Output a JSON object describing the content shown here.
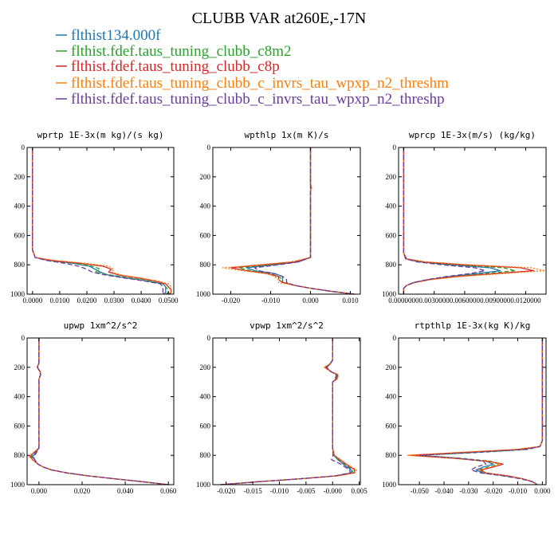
{
  "figure": {
    "title": "CLUBB VAR at260E,-17N",
    "legend": [
      {
        "label": "flthist134.000f",
        "color": "#1f77b4"
      },
      {
        "label": "flthist.fdef.taus_tuning_clubb_c8m2",
        "color": "#2ca02c"
      },
      {
        "label": "flthist.fdef.taus_tuning_clubb_c8p",
        "color": "#d62728"
      },
      {
        "label": "flthist.fdef.taus_tuning_clubb_c_invrs_tau_wpxp_n2_threshm",
        "color": "#ff7f0e"
      },
      {
        "label": "flthist.fdef.taus_tuning_clubb_c_invrs_tau_wpxp_n2_threshp",
        "color": "#6a3d9a"
      }
    ]
  },
  "chart_data": [
    {
      "type": "line",
      "title": "wprtp  1E-3x(m kg)/(s kg)",
      "xlim": [
        -0.002,
        0.052
      ],
      "ylim": [
        0,
        1000
      ],
      "y_inverted": true,
      "xticks": [
        0,
        0.01,
        0.02,
        0.03,
        0.04,
        0.05
      ],
      "xtick_labels": [
        "0.0000",
        "0.0100",
        "0.0200",
        "0.0300",
        "0.0400",
        "0.0500"
      ],
      "yticks": [
        0,
        200,
        400,
        600,
        800,
        1000
      ],
      "ytick_labels": [
        "0",
        "200",
        "400",
        "600",
        "800",
        "1000"
      ],
      "y": [
        0,
        200,
        400,
        600,
        700,
        750,
        770,
        790,
        810,
        830,
        850,
        870,
        890,
        910,
        930,
        950,
        970,
        990,
        1000
      ],
      "series": [
        {
          "values": [
            0,
            0,
            0,
            0,
            0,
            0.001,
            0.006,
            0.015,
            0.021,
            0.023,
            0.025,
            0.028,
            0.035,
            0.042,
            0.048,
            0.049,
            0.049,
            0.049,
            0.048
          ]
        },
        {
          "values": [
            0,
            0,
            0,
            0,
            0,
            0.001,
            0.006,
            0.016,
            0.022,
            0.025,
            0.023,
            0.029,
            0.036,
            0.043,
            0.048,
            0.049,
            0.05,
            0.05,
            0.049
          ]
        },
        {
          "values": [
            0,
            0,
            0,
            0,
            0,
            0.001,
            0.007,
            0.018,
            0.026,
            0.029,
            0.028,
            0.032,
            0.039,
            0.045,
            0.049,
            0.05,
            0.051,
            0.051,
            0.05
          ]
        },
        {
          "values": [
            0,
            0,
            0,
            0,
            0,
            0.001,
            0.008,
            0.02,
            0.028,
            0.03,
            0.029,
            0.033,
            0.04,
            0.046,
            0.05,
            0.051,
            0.051,
            0.051,
            0.05
          ]
        },
        {
          "values": [
            0,
            0,
            0,
            0,
            0,
            0.001,
            0.005,
            0.012,
            0.017,
            0.02,
            0.022,
            0.027,
            0.034,
            0.041,
            0.047,
            0.048,
            0.048,
            0.048,
            0.047
          ]
        }
      ]
    },
    {
      "type": "line",
      "title": "wpthlp  1x(m K)/s",
      "xlim": [
        -0.0245,
        0.0125
      ],
      "ylim": [
        0,
        1000
      ],
      "y_inverted": true,
      "xticks": [
        -0.02,
        -0.01,
        0,
        0.01
      ],
      "xtick_labels": [
        "-0.020",
        "-0.010",
        "0.000",
        "0.010"
      ],
      "yticks": [
        0,
        200,
        400,
        600,
        800,
        1000
      ],
      "ytick_labels": [
        "0",
        "200",
        "400",
        "600",
        "800",
        "1000"
      ],
      "y": [
        0,
        100,
        200,
        250,
        270,
        300,
        400,
        500,
        600,
        700,
        750,
        780,
        800,
        820,
        840,
        860,
        880,
        900,
        920,
        940,
        960,
        980,
        1000
      ],
      "series": [
        {
          "values": [
            0,
            0,
            0,
            0,
            0,
            0,
            0,
            0,
            0,
            0,
            0,
            -0.003,
            -0.009,
            -0.016,
            -0.014,
            -0.009,
            -0.007,
            -0.007,
            -0.007,
            -0.004,
            0.0,
            0.005,
            0.011
          ]
        },
        {
          "values": [
            0,
            0,
            0,
            0,
            0.0002,
            0,
            0,
            0,
            0,
            0,
            0,
            -0.004,
            -0.01,
            -0.018,
            -0.015,
            -0.01,
            -0.008,
            -0.007,
            -0.007,
            -0.004,
            0.0,
            0.005,
            0.011
          ]
        },
        {
          "values": [
            0,
            0,
            0,
            0,
            0.0002,
            0,
            0,
            0,
            0,
            0,
            0,
            -0.004,
            -0.012,
            -0.02,
            -0.016,
            -0.011,
            -0.008,
            -0.008,
            -0.007,
            -0.004,
            0.0,
            0.005,
            0.011
          ]
        },
        {
          "values": [
            0,
            0,
            0,
            0,
            0.0002,
            0,
            0,
            0,
            0,
            0,
            0,
            -0.005,
            -0.013,
            -0.022,
            -0.017,
            -0.011,
            -0.009,
            -0.008,
            -0.008,
            -0.004,
            0.0,
            0.005,
            0.011
          ]
        },
        {
          "values": [
            0,
            0,
            0,
            0,
            0,
            0,
            0,
            0,
            0,
            0,
            0,
            -0.003,
            -0.008,
            -0.014,
            -0.013,
            -0.009,
            -0.007,
            -0.006,
            -0.006,
            -0.004,
            0.0,
            0.005,
            0.011
          ]
        }
      ]
    },
    {
      "type": "line",
      "title": "wprcp  1E-3x(m/s) (kg/kg)",
      "xlim": [
        -0.0005,
        0.014
      ],
      "ylim": [
        0,
        1000
      ],
      "y_inverted": true,
      "xticks": [
        0,
        0.003,
        0.006,
        0.009,
        0.012
      ],
      "xtick_labels": [
        "0.0000000",
        "0.0030000",
        "0.0060000",
        "0.0090000",
        "0.0120000"
      ],
      "yticks": [
        0,
        200,
        400,
        600,
        800,
        1000
      ],
      "ytick_labels": [
        "0",
        "200",
        "400",
        "600",
        "800",
        "1000"
      ],
      "y": [
        0,
        200,
        400,
        600,
        720,
        760,
        780,
        800,
        820,
        840,
        860,
        880,
        900,
        920,
        940,
        960,
        980,
        1000
      ],
      "series": [
        {
          "values": [
            0,
            0,
            0,
            0,
            0,
            0.0002,
            0.0015,
            0.0045,
            0.0085,
            0.0095,
            0.0072,
            0.0045,
            0.0025,
            0.001,
            0.0003,
            0,
            0,
            0
          ]
        },
        {
          "values": [
            0,
            0,
            0,
            0,
            0,
            0.0002,
            0.0017,
            0.0052,
            0.0098,
            0.011,
            0.008,
            0.0048,
            0.0025,
            0.001,
            0.0003,
            0,
            0,
            0
          ]
        },
        {
          "values": [
            0,
            0,
            0,
            0,
            0,
            0.0003,
            0.002,
            0.006,
            0.0115,
            0.0128,
            0.009,
            0.0052,
            0.0026,
            0.0011,
            0.0003,
            0,
            0,
            0
          ]
        },
        {
          "values": [
            0,
            0,
            0,
            0,
            0,
            0.0003,
            0.0022,
            0.0065,
            0.0125,
            0.0139,
            0.0098,
            0.0056,
            0.0028,
            0.0012,
            0.0003,
            0,
            0,
            0
          ]
        },
        {
          "values": [
            0,
            0,
            0,
            0,
            0,
            0.0002,
            0.0013,
            0.0038,
            0.007,
            0.008,
            0.0065,
            0.0042,
            0.0024,
            0.001,
            0.0003,
            0,
            0,
            0
          ]
        }
      ]
    },
    {
      "type": "line",
      "title": "upwp  1xm^2/s^2",
      "xlim": [
        -0.0055,
        0.0625
      ],
      "ylim": [
        0,
        1000
      ],
      "y_inverted": true,
      "xticks": [
        0,
        0.02,
        0.04,
        0.06
      ],
      "xtick_labels": [
        "0.000",
        "0.020",
        "0.040",
        "0.060"
      ],
      "yticks": [
        0,
        200,
        400,
        600,
        800,
        1000
      ],
      "ytick_labels": [
        "0",
        "200",
        "400",
        "600",
        "800",
        "1000"
      ],
      "y": [
        0,
        100,
        170,
        200,
        230,
        250,
        280,
        400,
        600,
        750,
        790,
        810,
        830,
        860,
        880,
        900,
        920,
        940,
        960,
        980,
        1000
      ],
      "series": [
        {
          "values": [
            0,
            0,
            0,
            -0.0007,
            0.0005,
            0.0007,
            0,
            0,
            0,
            0,
            -0.002,
            -0.003,
            -0.002,
            -0.0005,
            0.002,
            0.006,
            0.013,
            0.023,
            0.035,
            0.048,
            0.06
          ]
        },
        {
          "values": [
            0,
            0,
            0,
            -0.0008,
            0.0005,
            0.0008,
            0,
            0,
            0,
            0,
            -0.0025,
            -0.0035,
            -0.0025,
            -0.0005,
            0.002,
            0.006,
            0.013,
            0.023,
            0.035,
            0.048,
            0.06
          ]
        },
        {
          "values": [
            0,
            0,
            0,
            -0.0008,
            0.0006,
            0.0008,
            0,
            0,
            0,
            0,
            -0.003,
            -0.004,
            -0.003,
            -0.0005,
            0.002,
            0.006,
            0.013,
            0.023,
            0.035,
            0.048,
            0.06
          ]
        },
        {
          "values": [
            0,
            0,
            0,
            -0.0009,
            0.0006,
            0.0009,
            0,
            0,
            0,
            0,
            -0.0035,
            -0.0045,
            -0.003,
            -0.0005,
            0.002,
            0.006,
            0.013,
            0.023,
            0.035,
            0.048,
            0.06
          ]
        },
        {
          "values": [
            0,
            0,
            0,
            -0.0007,
            0.0005,
            0.0007,
            0,
            0,
            0,
            0,
            -0.0015,
            -0.0025,
            -0.002,
            -0.0005,
            0.002,
            0.006,
            0.013,
            0.023,
            0.035,
            0.048,
            0.06
          ]
        }
      ]
    },
    {
      "type": "line",
      "title": "vpwp  1xm^2/s^2",
      "xlim": [
        -0.0225,
        0.0052
      ],
      "ylim": [
        0,
        1000
      ],
      "y_inverted": true,
      "xticks": [
        -0.02,
        -0.015,
        -0.01,
        -0.005,
        0,
        0.005
      ],
      "xtick_labels": [
        "-0.020",
        "-0.015",
        "-0.010",
        "-0.005",
        "-0.000",
        "0.005"
      ],
      "yticks": [
        0,
        200,
        400,
        600,
        800,
        1000
      ],
      "ytick_labels": [
        "0",
        "200",
        "400",
        "600",
        "800",
        "1000"
      ],
      "y": [
        0,
        100,
        150,
        180,
        200,
        230,
        250,
        280,
        300,
        350,
        400,
        600,
        750,
        800,
        830,
        860,
        900,
        920,
        940,
        960,
        980,
        1000
      ],
      "series": [
        {
          "values": [
            0,
            0,
            0,
            -0.0005,
            -0.0012,
            -0.0003,
            0.0008,
            0.0006,
            0,
            0,
            0,
            0,
            0,
            0.0002,
            0.001,
            0.002,
            0.0035,
            0.0035,
            0.0005,
            -0.006,
            -0.014,
            -0.021
          ]
        },
        {
          "values": [
            0,
            0,
            0,
            -0.0005,
            -0.0013,
            -0.0003,
            0.0009,
            0.0007,
            0,
            0,
            0,
            0,
            0,
            0.0002,
            0.0012,
            0.0022,
            0.0038,
            0.0037,
            0.0006,
            -0.006,
            -0.014,
            -0.021
          ]
        },
        {
          "values": [
            0,
            0,
            0,
            -0.0006,
            -0.0015,
            -0.0003,
            0.001,
            0.0008,
            0,
            0,
            0,
            0,
            0,
            0.0003,
            0.0014,
            0.0025,
            0.0042,
            0.004,
            0.0008,
            -0.006,
            -0.014,
            -0.021
          ]
        },
        {
          "values": [
            0,
            0,
            0,
            -0.0006,
            -0.0016,
            -0.0003,
            0.0011,
            0.0009,
            0,
            0,
            0,
            0,
            0,
            0.0003,
            0.0015,
            0.0027,
            0.0045,
            0.0042,
            0.0009,
            -0.006,
            -0.014,
            -0.021
          ]
        },
        {
          "values": [
            0,
            0,
            0,
            -0.0005,
            -0.0011,
            -0.0003,
            0.0007,
            0.0005,
            0,
            0,
            0,
            0,
            0,
            0.0001,
            -0.0002,
            0.0015,
            0.0032,
            0.0033,
            0.0004,
            -0.006,
            -0.014,
            -0.021
          ]
        }
      ]
    },
    {
      "type": "line",
      "title": "rtpthlp  1E-3x(kg K)/kg",
      "xlim": [
        -0.0585,
        0.0015
      ],
      "ylim": [
        0,
        1000
      ],
      "y_inverted": true,
      "xticks": [
        -0.05,
        -0.04,
        -0.03,
        -0.02,
        -0.01,
        0
      ],
      "xtick_labels": [
        "-0.050",
        "-0.040",
        "-0.030",
        "-0.020",
        "-0.010",
        "0.000"
      ],
      "yticks": [
        0,
        200,
        400,
        600,
        800,
        1000
      ],
      "ytick_labels": [
        "0",
        "200",
        "400",
        "600",
        "800",
        "1000"
      ],
      "y": [
        0,
        200,
        400,
        600,
        700,
        740,
        760,
        780,
        800,
        820,
        840,
        860,
        880,
        900,
        920,
        940,
        960,
        980,
        1000
      ],
      "series": [
        {
          "values": [
            0,
            0,
            0,
            0,
            0,
            -0.001,
            -0.008,
            -0.028,
            -0.052,
            -0.035,
            -0.023,
            -0.02,
            -0.024,
            -0.027,
            -0.024,
            -0.015,
            -0.008,
            -0.004,
            -0.002
          ]
        },
        {
          "values": [
            0,
            0,
            0,
            0,
            0,
            -0.001,
            -0.006,
            -0.025,
            -0.05,
            -0.033,
            -0.021,
            -0.018,
            -0.022,
            -0.026,
            -0.023,
            -0.014,
            -0.008,
            -0.004,
            -0.002
          ]
        },
        {
          "values": [
            0,
            0,
            0,
            0,
            0,
            -0.001,
            -0.01,
            -0.032,
            -0.054,
            -0.036,
            -0.022,
            -0.016,
            -0.02,
            -0.025,
            -0.023,
            -0.014,
            -0.008,
            -0.004,
            -0.002
          ]
        },
        {
          "values": [
            0,
            0,
            0,
            0,
            0,
            -0.001,
            -0.011,
            -0.034,
            -0.055,
            -0.037,
            -0.023,
            -0.017,
            -0.021,
            -0.026,
            -0.023,
            -0.015,
            -0.008,
            -0.004,
            -0.002
          ]
        },
        {
          "values": [
            0,
            0,
            0,
            0,
            0,
            -0.001,
            -0.007,
            -0.027,
            -0.05,
            -0.034,
            -0.024,
            -0.023,
            -0.027,
            -0.029,
            -0.025,
            -0.016,
            -0.009,
            -0.004,
            -0.002
          ]
        }
      ]
    }
  ]
}
